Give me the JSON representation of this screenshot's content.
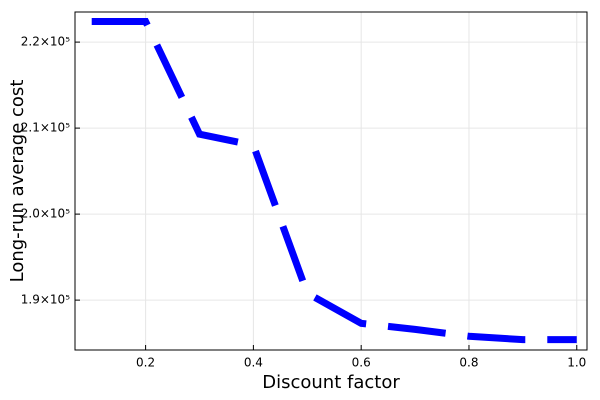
{
  "chart_data": {
    "type": "line",
    "xlabel": "Discount factor",
    "ylabel": "Long-run average cost",
    "x": [
      0.1,
      0.2,
      0.3,
      0.4,
      0.5,
      0.6,
      0.7,
      0.8,
      0.9,
      1.0
    ],
    "series": [
      {
        "color": "#0000ff",
        "values": [
          222400,
          222400,
          209300,
          208000,
          190800,
          187300,
          186600,
          185800,
          185400,
          185400
        ]
      }
    ],
    "xlim": [
      0.069,
      1.019
    ],
    "ylim": [
      184200,
      223500
    ],
    "xticks": [
      0.2,
      0.4,
      0.6,
      0.8,
      {
        "value": 1.0,
        "label": "1.0"
      }
    ],
    "yticks": [
      {
        "value": 190000,
        "label": "1.9×10⁵"
      },
      {
        "value": 200000,
        "label": "2.0×10⁵"
      },
      {
        "value": 210000,
        "label": "2.1×10⁵"
      },
      {
        "value": 220000,
        "label": "2.2×10⁵"
      }
    ],
    "grid": true,
    "line_style": "dashed"
  }
}
